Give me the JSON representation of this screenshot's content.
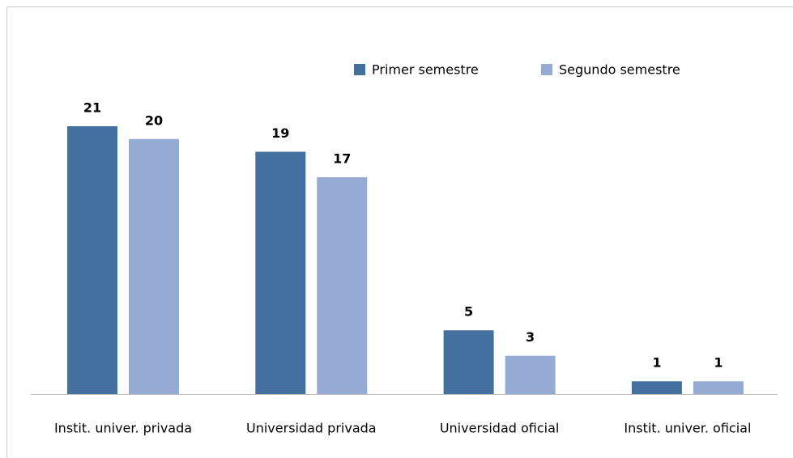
{
  "chart_data": {
    "type": "bar",
    "categories": [
      "Instit. univer. privada",
      "Universidad privada",
      "Universidad oficial",
      "Instit. univer. oficial"
    ],
    "series": [
      {
        "name": "Primer semestre",
        "color": "#44709f",
        "values": [
          21,
          19,
          5,
          1
        ]
      },
      {
        "name": "Segundo semestre",
        "color": "#95abd3",
        "values": [
          20,
          17,
          3,
          1
        ]
      }
    ],
    "legend": "top-right"
  }
}
